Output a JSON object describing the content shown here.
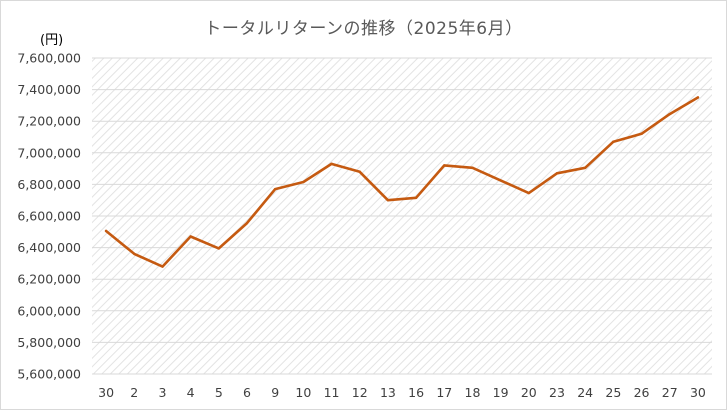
{
  "chart_data": {
    "type": "line",
    "title": "トータルリターンの推移（2025年6月）",
    "y_unit": "(円)",
    "xlabel": "",
    "ylabel": "",
    "categories": [
      "30",
      "2",
      "3",
      "4",
      "5",
      "6",
      "9",
      "10",
      "11",
      "12",
      "13",
      "16",
      "17",
      "18",
      "19",
      "20",
      "23",
      "24",
      "25",
      "26",
      "27",
      "30"
    ],
    "series": [
      {
        "values": [
          6505000,
          6360000,
          6280000,
          6470000,
          6395000,
          6555000,
          6770000,
          6815000,
          6930000,
          6880000,
          6700000,
          6715000,
          6920000,
          6905000,
          6825000,
          6745000,
          6870000,
          6905000,
          7070000,
          7120000,
          7245000,
          7350000
        ],
        "color": "#c55a11"
      }
    ],
    "ylim": [
      5600000,
      7600000
    ],
    "ytick_step": 200000,
    "ytick_labels": [
      "5,600,000",
      "5,800,000",
      "6,000,000",
      "6,200,000",
      "6,400,000",
      "6,600,000",
      "6,800,000",
      "7,000,000",
      "7,200,000",
      "7,400,000",
      "7,600,000"
    ],
    "grid": true,
    "legend": "none",
    "colors": {
      "line": "#c55a11",
      "grid": "#d9d9d9",
      "plot_pattern": "#e6e6e6",
      "text": "#404040"
    }
  }
}
